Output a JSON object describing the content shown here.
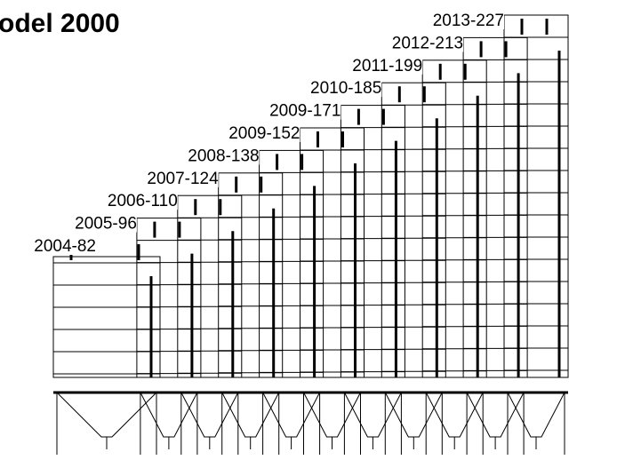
{
  "title": "odel 2000",
  "labels": [
    "2004-82",
    "2005-96",
    "2006-110",
    "2007-124",
    "2008-138",
    "2009-152",
    "2009-171",
    "2010-185",
    "2011-199",
    "2012-213",
    "2013-227"
  ]
}
